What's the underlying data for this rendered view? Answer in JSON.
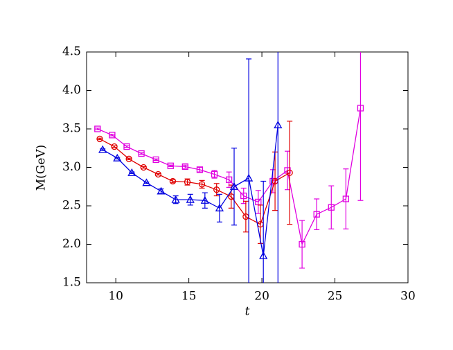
{
  "chart_data": {
    "type": "line",
    "xlabel": "t",
    "ylabel": "M(GeV)",
    "xlim": [
      8,
      30
    ],
    "ylim": [
      1.5,
      4.5
    ],
    "xticks": [
      10,
      15,
      20,
      25,
      30
    ],
    "yticks": [
      1.5,
      {
        "value": 2.0,
        "label": "2.0"
      },
      2.5,
      {
        "value": 3.0,
        "label": "3.0"
      },
      3.5,
      {
        "value": 4.0,
        "label": "4.0"
      },
      4.5
    ],
    "series": [
      {
        "color": "#e000e0",
        "marker": "square",
        "x": [
          8.75,
          9.75,
          10.75,
          11.75,
          12.75,
          13.75,
          14.75,
          15.75,
          16.75,
          17.75,
          18.75,
          19.75,
          20.75,
          21.75,
          22.75,
          23.75,
          24.75,
          25.75,
          26.75
        ],
        "values": [
          3.5,
          3.42,
          3.27,
          3.18,
          3.1,
          3.02,
          3.01,
          2.97,
          2.91,
          2.84,
          2.63,
          2.55,
          2.82,
          2.96,
          2.0,
          2.39,
          2.48,
          2.59,
          3.77
        ],
        "errors": [
          0.01,
          0.01,
          0.01,
          0.01,
          0.01,
          0.01,
          0.02,
          0.03,
          0.05,
          0.1,
          0.1,
          0.15,
          0.15,
          0.25,
          0.31,
          0.2,
          0.28,
          0.39,
          1.2
        ]
      },
      {
        "color": "#e00000",
        "marker": "circle",
        "x": [
          8.9,
          9.9,
          10.9,
          11.9,
          12.9,
          13.9,
          14.9,
          15.9,
          16.9,
          17.9,
          18.9,
          19.9,
          20.9,
          21.9
        ],
        "values": [
          3.37,
          3.27,
          3.11,
          3.0,
          2.91,
          2.82,
          2.81,
          2.78,
          2.71,
          2.62,
          2.36,
          2.26,
          2.82,
          2.93
        ],
        "errors": [
          0.01,
          0.01,
          0.01,
          0.01,
          0.01,
          0.02,
          0.04,
          0.05,
          0.08,
          0.15,
          0.2,
          0.25,
          0.38,
          0.67
        ]
      },
      {
        "color": "#0000e0",
        "marker": "triangle",
        "x": [
          9.1,
          10.1,
          11.1,
          12.1,
          13.1,
          14.1,
          15.1,
          16.1,
          17.1,
          18.1,
          19.1,
          20.1,
          21.1
        ],
        "values": [
          3.23,
          3.12,
          2.93,
          2.8,
          2.69,
          2.58,
          2.58,
          2.57,
          2.47,
          2.75,
          2.86,
          1.85,
          3.55
        ],
        "errors": [
          0.01,
          0.01,
          0.01,
          0.01,
          0.03,
          0.05,
          0.07,
          0.1,
          0.18,
          0.5,
          1.55,
          0.97,
          2.2
        ]
      }
    ]
  }
}
